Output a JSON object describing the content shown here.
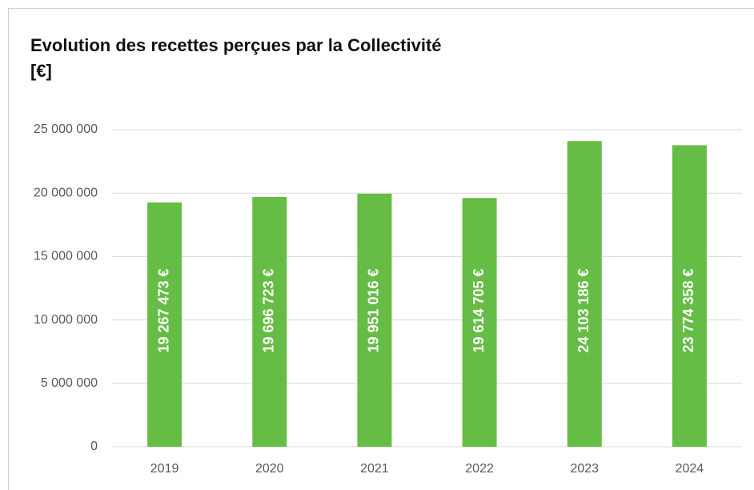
{
  "chart_data": {
    "type": "bar",
    "title": "Evolution des recettes perçues par la Collectivité",
    "subtitle": "[€]",
    "categories": [
      "2019",
      "2020",
      "2021",
      "2022",
      "2023",
      "2024"
    ],
    "values": [
      19267473,
      19696723,
      19951016,
      19614705,
      24103186,
      23774358
    ],
    "value_labels": [
      "19 267 473 €",
      "19 696 723 €",
      "19 951 016 €",
      "19 614 705 €",
      "24 103 186 €",
      "23 774 358 €"
    ],
    "color": "#66bd45",
    "ylim": [
      0,
      25000000
    ],
    "yticks": [
      0,
      {
        "value": 5000000,
        "label": "5 000 000"
      },
      {
        "value": 10000000,
        "label": "10 000 000"
      },
      {
        "value": 15000000,
        "label": "15 000 000"
      },
      {
        "value": 20000000,
        "label": "20 000 000"
      },
      {
        "value": 25000000,
        "label": "25 000 000"
      }
    ],
    "grid": true
  }
}
